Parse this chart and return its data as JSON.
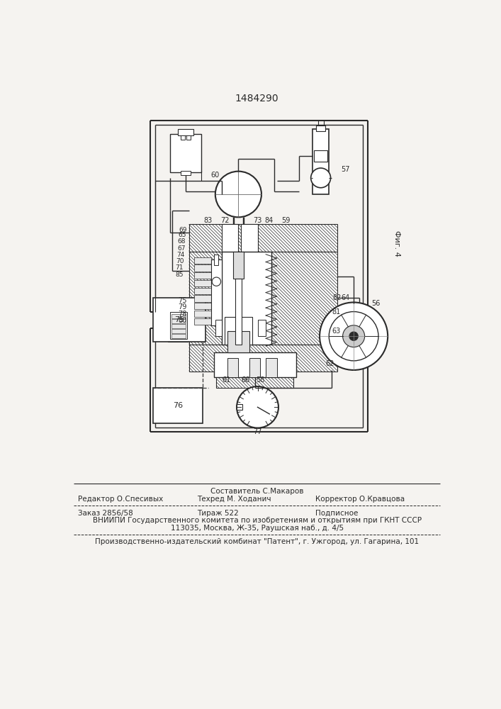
{
  "title": "1484290",
  "bg_color": "#f5f3f0",
  "line_color": "#2a2a2a",
  "fig_label": "Фиг. 4",
  "footer": {
    "sestavitel_label": "Составитель С.Макаров",
    "redaktor_label": "Редактор О.Спесивых",
    "tekhred_label": "Техред М. Ходанич",
    "korrektor_label": "Корректор О.Кравцова",
    "zakaz": "Заказ 2856/58",
    "tirazh": "Тираж 522",
    "podpisnoe": "Подписное",
    "vniiipi": "ВНИИПИ Государственного комитета по изобретениям и открытиям при ГКНТ СССР",
    "address": "113035, Москва, Ж-35, Раушская наб., д. 4/5",
    "kombinat": "Производственно-издательский комбинат \"Патент\", г. Ужгород, ул. Гагарина, 101"
  }
}
